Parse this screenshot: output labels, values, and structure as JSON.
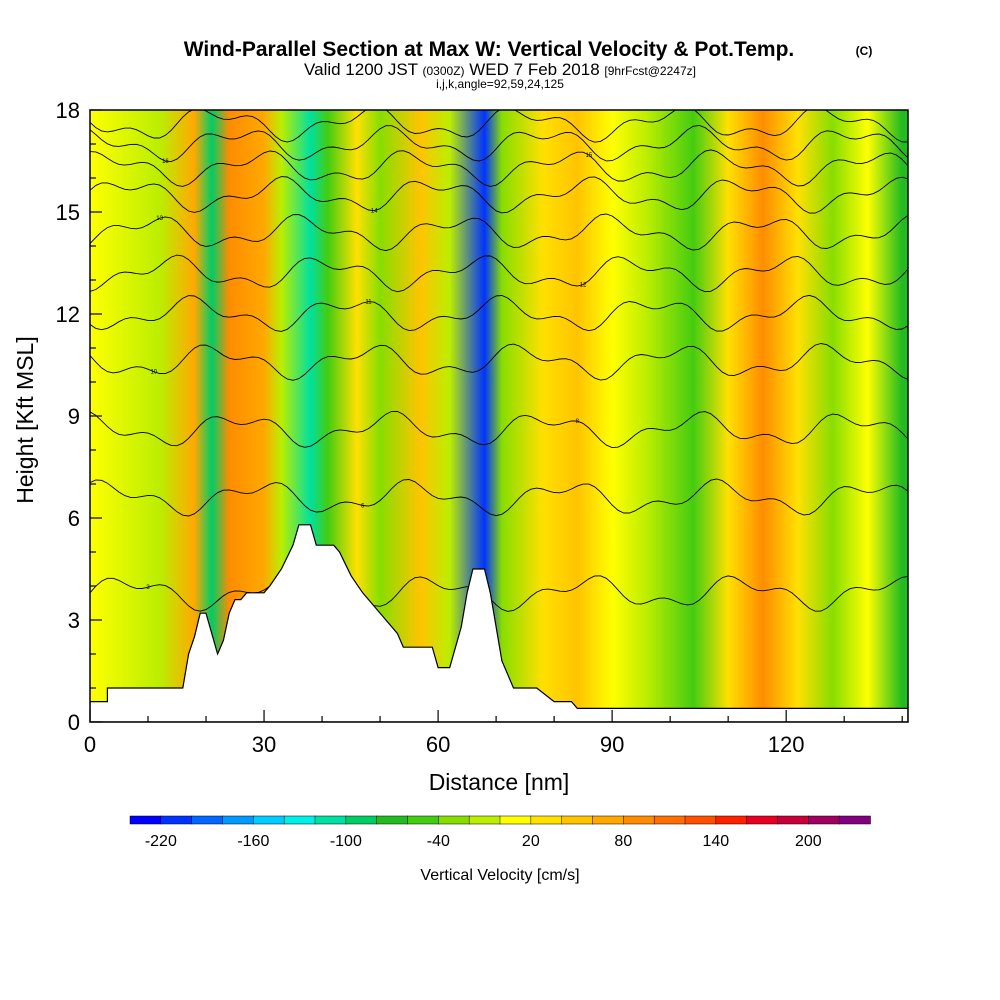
{
  "title": {
    "main": "Wind-Parallel Section at Max W: Vertical Velocity & Pot.Temp.",
    "copyright": "(C)",
    "valid_prefix": "Valid 1200 JST",
    "valid_utc": "(0300Z)",
    "valid_date": "WED 7 Feb 2018",
    "forecast": "[9hrFcst@2247z]",
    "indices": "i,j,k,angle=92,59,24,125"
  },
  "chart_data": {
    "type": "heatmap",
    "xlabel": "Distance [nm]",
    "ylabel": "Height [Kft MSL]",
    "xlim": [
      0,
      141
    ],
    "ylim": [
      0,
      18
    ],
    "x_ticks": [
      0,
      30,
      60,
      90,
      120
    ],
    "y_ticks": [
      0,
      3,
      6,
      9,
      12,
      15,
      18
    ],
    "color_variable": "Vertical Velocity [cm/s]",
    "colorbar_labels": [
      -220,
      -160,
      -100,
      -40,
      20,
      80,
      140,
      200
    ],
    "colorbar_levels": [
      -240,
      -220,
      -200,
      -180,
      -160,
      -140,
      -120,
      -100,
      -80,
      -60,
      -40,
      -20,
      0,
      20,
      40,
      60,
      80,
      100,
      120,
      140,
      160,
      180,
      200,
      220,
      240
    ],
    "colorbar_colors": [
      "#0000ff",
      "#0033ff",
      "#0066ff",
      "#0099ff",
      "#00ccff",
      "#00f0e8",
      "#00e0a0",
      "#00cc66",
      "#22bb22",
      "#44cc11",
      "#88dd00",
      "#bbee00",
      "#ffff00",
      "#ffe000",
      "#ffc400",
      "#ffa800",
      "#ff8c00",
      "#ff6e00",
      "#ff5000",
      "#ff2000",
      "#e80020",
      "#c8003a",
      "#a00060",
      "#800080"
    ],
    "velocity_bands": [
      {
        "x": 0,
        "w": 0
      },
      {
        "x": 12,
        "w": -20
      },
      {
        "x": 18,
        "w": 60
      },
      {
        "x": 21,
        "w": -100
      },
      {
        "x": 24,
        "w": 80
      },
      {
        "x": 30,
        "w": 60
      },
      {
        "x": 33,
        "w": -20
      },
      {
        "x": 38,
        "w": -120
      },
      {
        "x": 41,
        "w": -60
      },
      {
        "x": 46,
        "w": 20
      },
      {
        "x": 50,
        "w": -40
      },
      {
        "x": 57,
        "w": 40
      },
      {
        "x": 62,
        "w": -20
      },
      {
        "x": 68,
        "w": -220
      },
      {
        "x": 71,
        "w": -40
      },
      {
        "x": 78,
        "w": 20
      },
      {
        "x": 84,
        "w": 40
      },
      {
        "x": 90,
        "w": 0
      },
      {
        "x": 96,
        "w": -20
      },
      {
        "x": 104,
        "w": -60
      },
      {
        "x": 110,
        "w": 20
      },
      {
        "x": 116,
        "w": 80
      },
      {
        "x": 122,
        "w": 20
      },
      {
        "x": 128,
        "w": -40
      },
      {
        "x": 134,
        "w": 0
      },
      {
        "x": 140,
        "w": -80
      }
    ],
    "terrain_profile": [
      [
        0,
        0.6
      ],
      [
        3,
        0.6
      ],
      [
        3,
        1.0
      ],
      [
        16,
        1.0
      ],
      [
        17,
        2.0
      ],
      [
        18,
        2.5
      ],
      [
        19,
        3.2
      ],
      [
        20,
        3.2
      ],
      [
        21,
        2.6
      ],
      [
        22,
        2.0
      ],
      [
        23,
        2.4
      ],
      [
        24,
        3.2
      ],
      [
        25,
        3.6
      ],
      [
        26,
        3.6
      ],
      [
        27,
        3.8
      ],
      [
        30,
        3.8
      ],
      [
        31,
        4.0
      ],
      [
        33,
        4.5
      ],
      [
        35,
        5.2
      ],
      [
        36,
        5.8
      ],
      [
        38,
        5.8
      ],
      [
        39,
        5.2
      ],
      [
        42,
        5.2
      ],
      [
        43,
        5.0
      ],
      [
        45,
        4.3
      ],
      [
        47,
        3.8
      ],
      [
        49,
        3.4
      ],
      [
        51,
        3.0
      ],
      [
        53,
        2.6
      ],
      [
        54,
        2.2
      ],
      [
        59,
        2.2
      ],
      [
        60,
        1.6
      ],
      [
        62,
        1.6
      ],
      [
        63,
        2.2
      ],
      [
        64,
        2.8
      ],
      [
        65,
        3.8
      ],
      [
        66,
        4.5
      ],
      [
        68,
        4.5
      ],
      [
        69,
        3.8
      ],
      [
        70,
        2.8
      ],
      [
        71,
        1.8
      ],
      [
        73,
        1.0
      ],
      [
        77,
        1.0
      ],
      [
        80,
        0.6
      ],
      [
        83,
        0.6
      ],
      [
        84,
        0.4
      ],
      [
        141,
        0.4
      ]
    ],
    "pot_temp_contours": [
      {
        "label": "3",
        "base": 3.8
      },
      {
        "label": "6",
        "base": 6.6
      },
      {
        "label": "8",
        "base": 8.6
      },
      {
        "label": "10",
        "base": 10.6
      },
      {
        "label": "11",
        "base": 12.0
      },
      {
        "label": "12",
        "base": 13.2
      },
      {
        "label": "13",
        "base": 14.4
      },
      {
        "label": "14",
        "base": 15.5
      },
      {
        "label": "15",
        "base": 16.3
      },
      {
        "label": "16",
        "base": 17.0
      },
      {
        "label": "17",
        "base": 17.6
      }
    ]
  }
}
